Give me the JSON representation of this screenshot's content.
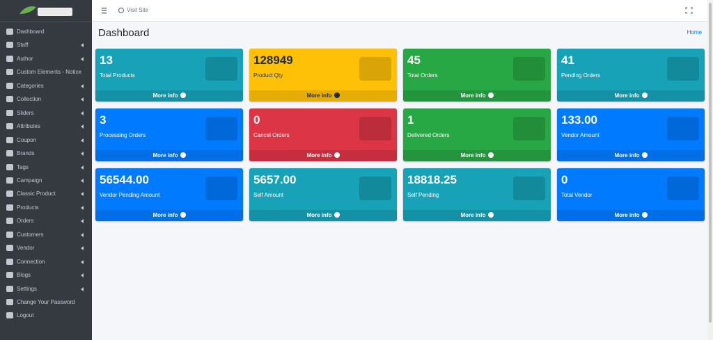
{
  "sidebar": {
    "menu": [
      {
        "label": "Dashboard",
        "submenu": false
      },
      {
        "label": "Staff",
        "submenu": true
      },
      {
        "label": "Author",
        "submenu": true
      },
      {
        "label": "Custom Elements - Notice",
        "submenu": false
      },
      {
        "label": "Categories",
        "submenu": true
      },
      {
        "label": "Collection",
        "submenu": true
      },
      {
        "label": "Sliders",
        "submenu": true
      },
      {
        "label": "Attributes",
        "submenu": true
      },
      {
        "label": "Coupon",
        "submenu": true
      },
      {
        "label": "Brands",
        "submenu": true
      },
      {
        "label": "Tags",
        "submenu": true
      },
      {
        "label": "Campaign",
        "submenu": true
      },
      {
        "label": "Classic Product",
        "submenu": true
      },
      {
        "label": "Products",
        "submenu": true
      },
      {
        "label": "Orders",
        "submenu": true
      },
      {
        "label": "Customers",
        "submenu": true
      },
      {
        "label": "Vendor",
        "submenu": true
      },
      {
        "label": "Connection",
        "submenu": true
      },
      {
        "label": "Blogs",
        "submenu": true
      },
      {
        "label": "Settings",
        "submenu": true
      },
      {
        "label": "Change Your Password",
        "submenu": false
      },
      {
        "label": "Logout",
        "submenu": false
      }
    ]
  },
  "navbar": {
    "visit_site": "Visit Site"
  },
  "header": {
    "title": "Dashboard",
    "breadcrumb": "Home"
  },
  "cards": [
    {
      "value": "13",
      "label": "Total Products",
      "more": "More info",
      "color": "#17a2b8"
    },
    {
      "value": "128949",
      "label": "Product Qty",
      "more": "More info",
      "color": "#ffc107"
    },
    {
      "value": "45",
      "label": "Total Orders",
      "more": "More info",
      "color": "#28a745"
    },
    {
      "value": "41",
      "label": "Pending Orders",
      "more": "More info",
      "color": "#17a2b8"
    },
    {
      "value": "3",
      "label": "Processing Orders",
      "more": "More info",
      "color": "#007bff"
    },
    {
      "value": "0",
      "label": "Cancel Orders",
      "more": "More info",
      "color": "#dc3545"
    },
    {
      "value": "1",
      "label": "Delivered Orders",
      "more": "More info",
      "color": "#28a745"
    },
    {
      "value": "133.00",
      "label": "Vendor Amount",
      "more": "More info",
      "color": "#007bff"
    },
    {
      "value": "56544.00",
      "label": "Vendor Pending Amount",
      "more": "More info",
      "color": "#007bff"
    },
    {
      "value": "5657.00",
      "label": "Self Amount",
      "more": "More info",
      "color": "#17a2b8"
    },
    {
      "value": "18818.25",
      "label": "Self Pending",
      "more": "More info",
      "color": "#17a2b8"
    },
    {
      "value": "0",
      "label": "Total Vendor",
      "more": "More info",
      "color": "#007bff"
    }
  ]
}
